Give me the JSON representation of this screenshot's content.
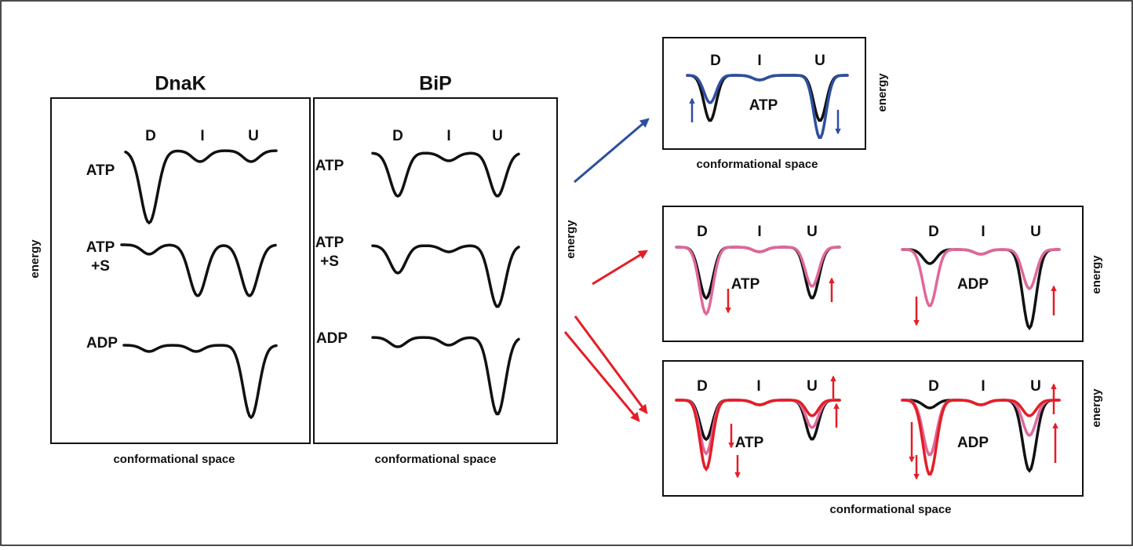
{
  "dnak": {
    "title": "DnaK",
    "states": [
      "D",
      "I",
      "U"
    ],
    "rows": [
      [
        "ATP"
      ],
      [
        "ATP",
        "+S"
      ],
      [
        "ADP"
      ]
    ],
    "y_label": "energy",
    "x_label": "conformational space"
  },
  "bip": {
    "title": "BiP",
    "states": [
      "D",
      "I",
      "U"
    ],
    "rows": [
      [
        "ATP"
      ],
      [
        "ATP",
        "+S"
      ],
      [
        "ADP"
      ]
    ],
    "y_label": "energy",
    "x_label": "conformational space"
  },
  "top_panel": {
    "states": [
      "D",
      "I",
      "U"
    ],
    "label": "ATP",
    "y_label": "energy",
    "x_label": "conformational space"
  },
  "middle_panel": {
    "left": {
      "states": [
        "D",
        "I",
        "U"
      ],
      "label": "ATP"
    },
    "right": {
      "states": [
        "D",
        "I",
        "U"
      ],
      "label": "ADP"
    },
    "y_label": "energy"
  },
  "bottom_panel": {
    "left": {
      "states": [
        "D",
        "I",
        "U"
      ],
      "label": "ATP"
    },
    "right": {
      "states": [
        "D",
        "I",
        "U"
      ],
      "label": "ADP"
    },
    "y_label": "energy",
    "x_label": "conformational space"
  }
}
